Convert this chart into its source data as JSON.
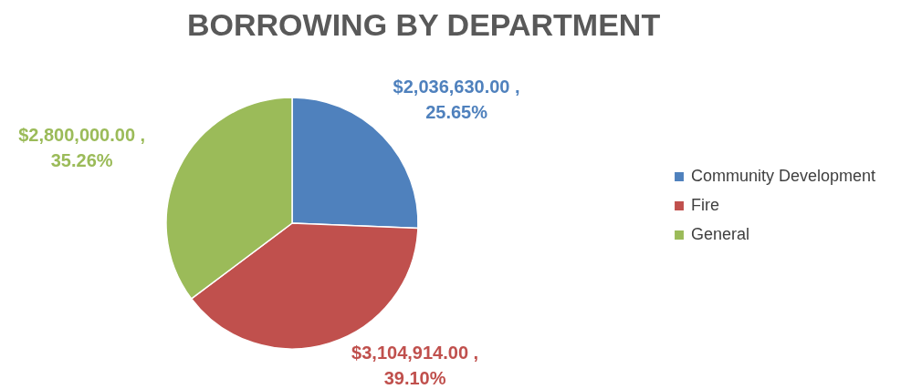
{
  "chart_data": {
    "type": "pie",
    "title": "BORROWING BY DEPARTMENT",
    "categories": [
      "Community Development",
      "Fire",
      "General"
    ],
    "values": [
      2036630,
      3104914,
      2800000
    ],
    "colors": [
      "#4f81bd",
      "#c0504d",
      "#9bbb59"
    ],
    "value_labels": [
      "$2,036,630.00 , 25.65%",
      "$3,104,914.00 , 39.10%",
      "$2,800,000.00 , 35.26%"
    ],
    "legend": "right"
  }
}
